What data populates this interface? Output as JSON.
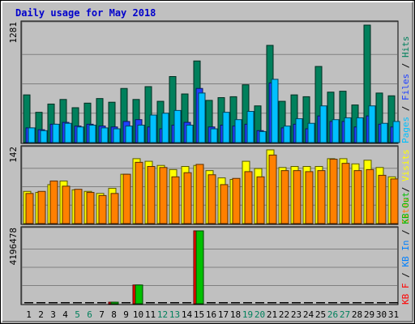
{
  "chart_data": {
    "type": "bar",
    "title": "Daily usage for May 2018",
    "x": [
      "1",
      "2",
      "3",
      "4",
      "5",
      "6",
      "7",
      "8",
      "9",
      "10",
      "11",
      "12",
      "13",
      "14",
      "15",
      "16",
      "17",
      "18",
      "19",
      "20",
      "21",
      "22",
      "23",
      "24",
      "25",
      "26",
      "27",
      "28",
      "29",
      "30",
      "31"
    ],
    "weekend_days": [
      "5",
      "6",
      "12",
      "13",
      "19",
      "20",
      "26",
      "27"
    ],
    "panels": [
      {
        "id": "pages-files-hits",
        "max_label": "1281",
        "ymax": 1281,
        "legend": [
          {
            "text": "Pages",
            "color": "#00c0ff"
          },
          {
            "text": "Files",
            "color": "#2040ff"
          },
          {
            "text": "Hits",
            "color": "#00805c"
          }
        ],
        "series": [
          {
            "name": "Hits",
            "color": "#00805c",
            "values": [
              520,
              330,
              420,
              470,
              380,
              430,
              480,
              440,
              590,
              470,
              610,
              450,
              720,
              530,
              890,
              460,
              490,
              500,
              630,
              400,
              1060,
              450,
              520,
              500,
              830,
              550,
              560,
              410,
              1281,
              540,
              510
            ]
          },
          {
            "name": "Files",
            "color": "#2040ff",
            "values": [
              160,
              140,
              200,
              220,
              180,
              200,
              180,
              170,
              230,
              250,
              170,
              150,
              190,
              220,
              590,
              170,
              190,
              180,
              200,
              130,
              650,
              160,
              200,
              150,
              290,
              230,
              230,
              170,
              290,
              200,
              170
            ]
          },
          {
            "name": "Pages",
            "color": "#00c0ff",
            "values": [
              160,
              130,
              200,
              210,
              170,
              190,
              160,
              150,
              180,
              190,
              300,
              320,
              350,
              190,
              540,
              150,
              330,
              250,
              340,
              120,
              690,
              180,
              260,
              210,
              400,
              250,
              270,
              270,
              400,
              210,
              230
            ]
          }
        ]
      },
      {
        "id": "visits-sites",
        "max_label": "142",
        "ymax": 142,
        "legend": [
          {
            "text": "Sites",
            "color": "#ff8000"
          },
          {
            "text": "Visits",
            "color": "#ffff00"
          }
        ],
        "series": [
          {
            "name": "Visits",
            "color": "#ffff00",
            "values": [
              62,
              60,
              75,
              82,
              65,
              62,
              58,
              68,
              95,
              125,
              120,
              112,
              104,
              110,
              112,
              102,
              88,
              85,
              120,
              106,
              142,
              108,
              110,
              110,
              110,
              125,
              125,
              115,
              122,
              108,
              90
            ]
          },
          {
            "name": "Sites",
            "color": "#ff8000",
            "values": [
              58,
              62,
              82,
              72,
              66,
              60,
              54,
              58,
              95,
              118,
              110,
              108,
              90,
              98,
              114,
              94,
              75,
              87,
              100,
              90,
              132,
              102,
              102,
              100,
              102,
              124,
              116,
              102,
              104,
              93,
              86
            ]
          }
        ]
      },
      {
        "id": "kb-in-out",
        "max_label": "4196478",
        "ymax": 4196478,
        "legend": [
          {
            "text": "KB F",
            "color": "#ff0000"
          },
          {
            "text": "KB In",
            "color": "#0080ff"
          },
          {
            "text": "KB Out",
            "color": "#00c000"
          }
        ],
        "series": [
          {
            "name": "KB F",
            "color": "#ff0000",
            "values": [
              0,
              0,
              0,
              0,
              0,
              0,
              0,
              90000,
              0,
              1080000,
              0,
              0,
              0,
              0,
              4196478,
              0,
              0,
              0,
              0,
              0,
              0,
              0,
              0,
              0,
              0,
              0,
              0,
              0,
              0,
              0,
              0
            ]
          },
          {
            "name": "KB Out",
            "color": "#00c000",
            "values": [
              0,
              0,
              0,
              0,
              0,
              0,
              0,
              90000,
              0,
              1080000,
              0,
              0,
              0,
              0,
              4196478,
              0,
              0,
              0,
              0,
              0,
              0,
              0,
              0,
              0,
              0,
              0,
              0,
              0,
              0,
              0,
              0
            ]
          }
        ]
      }
    ]
  }
}
